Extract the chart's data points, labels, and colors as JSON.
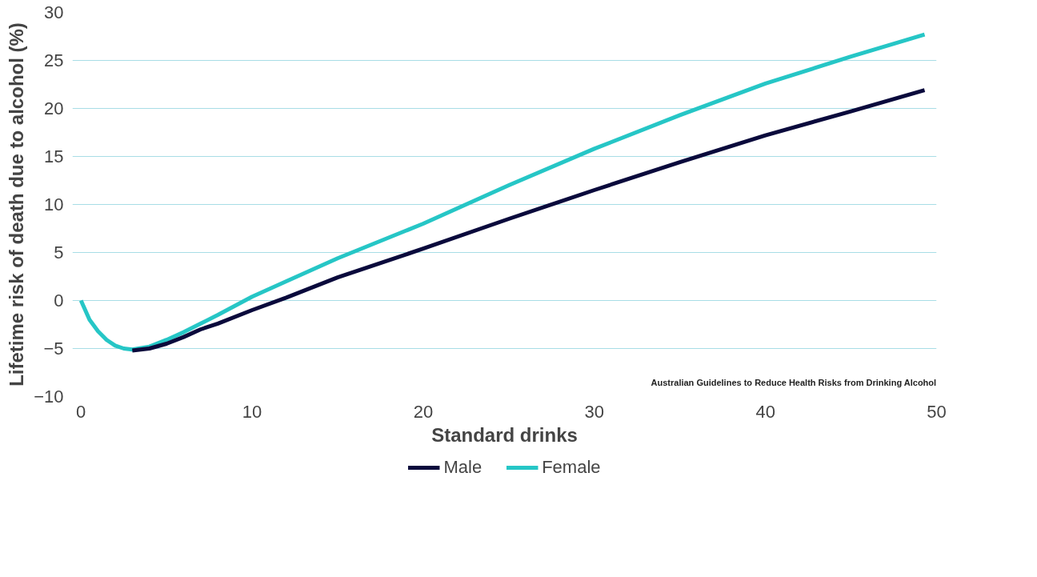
{
  "chart_data": {
    "type": "line",
    "xlabel": "Standard drinks",
    "ylabel": "Lifetime risk of death due to alcohol (%)",
    "annotations": [
      "Australian Guidelines to Reduce Health Risks from Drinking Alcohol"
    ],
    "series": [
      {
        "name": "Male",
        "color": "#0a0a3c",
        "x": [
          3,
          4,
          5,
          6,
          7,
          8,
          10,
          12,
          15,
          20,
          25,
          30,
          35,
          40,
          45,
          49.3
        ],
        "values": [
          -5.2,
          -5.0,
          -4.5,
          -3.8,
          -3.0,
          -2.4,
          -1.0,
          0.3,
          2.4,
          5.4,
          8.5,
          11.5,
          14.4,
          17.2,
          19.7,
          21.9
        ]
      },
      {
        "name": "Female",
        "color": "#26c6c6",
        "x": [
          0,
          0.5,
          1,
          1.5,
          2,
          2.5,
          3,
          4,
          5,
          6,
          7,
          8,
          10,
          12,
          15,
          20,
          25,
          30,
          35,
          40,
          45,
          49.3
        ],
        "values": [
          0,
          -2,
          -3.2,
          -4.1,
          -4.7,
          -5.0,
          -5.1,
          -4.8,
          -4.1,
          -3.3,
          -2.4,
          -1.5,
          0.4,
          2.0,
          4.4,
          8.0,
          12.0,
          15.8,
          19.3,
          22.6,
          25.4,
          27.7
        ]
      }
    ],
    "xlim": [
      -0.5,
      50
    ],
    "ylim": [
      -10,
      30
    ],
    "xticks": [
      0,
      10,
      20,
      30,
      40,
      50
    ],
    "yticks": [
      -10,
      -5,
      0,
      5,
      10,
      15,
      20,
      25,
      30
    ],
    "grid": "y",
    "legend": "bottom",
    "line_style": "solid",
    "marker": "none"
  }
}
